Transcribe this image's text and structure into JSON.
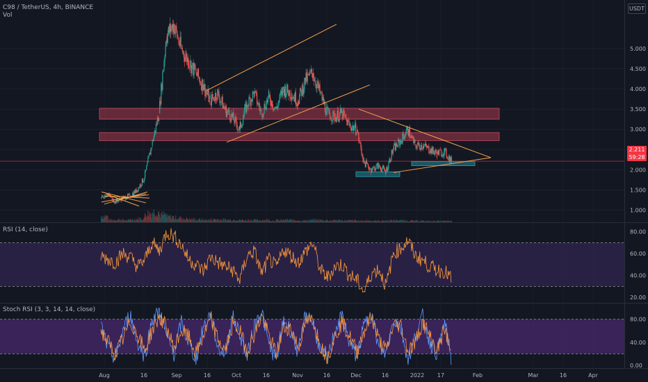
{
  "header": {
    "title": "C98 / TetherUS, 4h, BINANCE",
    "volume_label": "Vol",
    "currency": "USDT"
  },
  "price_badges": {
    "last_price": "2.211",
    "countdown": "59:28"
  },
  "colors": {
    "background": "#131722",
    "candle_up": "#26a69a",
    "candle_down": "#ef5350",
    "resistance_zone": "#a83a4f",
    "support_zone": "#1f6b78",
    "trendline": "#f7a44a",
    "rsi_line": "#ff9a3c",
    "rsi_band": "#3a2a5e",
    "stoch_k": "#5b9cff",
    "stoch_d": "#ff9a3c",
    "stoch_band": "#5a2e86"
  },
  "chart_data": [
    {
      "type": "candlestick",
      "title": "C98 / TetherUS, 4h, BINANCE",
      "ylim": [
        0.7,
        6.2
      ],
      "y_ticks": [
        "5.000",
        "4.500",
        "4.000",
        "3.500",
        "3.000",
        "2.500",
        "2.000",
        "1.500",
        "1.000"
      ],
      "x_ticks": [
        "Aug",
        "16",
        "Sep",
        "16",
        "Oct",
        "16",
        "Nov",
        "16",
        "Dec",
        "16",
        "2022",
        "17",
        "Feb",
        "Mar",
        "16",
        "Apr"
      ],
      "close_path": [
        [
          0,
          1.3
        ],
        [
          1,
          1.4
        ],
        [
          2,
          1.2
        ],
        [
          3,
          1.3
        ],
        [
          4,
          1.35
        ],
        [
          5,
          1.5
        ],
        [
          6,
          1.8
        ],
        [
          7,
          2.6
        ],
        [
          8,
          3.4
        ],
        [
          9,
          5.3
        ],
        [
          10,
          5.6
        ],
        [
          11,
          5.0
        ],
        [
          12,
          4.7
        ],
        [
          13,
          4.4
        ],
        [
          14,
          4.1
        ],
        [
          15,
          3.7
        ],
        [
          16,
          3.9
        ],
        [
          17,
          3.5
        ],
        [
          18,
          3.3
        ],
        [
          19,
          3.0
        ],
        [
          20,
          3.6
        ],
        [
          21,
          3.9
        ],
        [
          22,
          3.4
        ],
        [
          23,
          3.8
        ],
        [
          24,
          3.5
        ],
        [
          25,
          4.0
        ],
        [
          26,
          3.9
        ],
        [
          27,
          3.7
        ],
        [
          28,
          4.2
        ],
        [
          29,
          4.4
        ],
        [
          30,
          3.9
        ],
        [
          31,
          3.4
        ],
        [
          32,
          3.3
        ],
        [
          33,
          3.4
        ],
        [
          34,
          3.1
        ],
        [
          35,
          3.0
        ],
        [
          36,
          2.2
        ],
        [
          37,
          2.0
        ],
        [
          38,
          2.1
        ],
        [
          39,
          1.95
        ],
        [
          40,
          2.5
        ],
        [
          41,
          2.7
        ],
        [
          42,
          3.0
        ],
        [
          43,
          2.6
        ],
        [
          44,
          2.6
        ],
        [
          45,
          2.5
        ],
        [
          46,
          2.4
        ],
        [
          47,
          2.45
        ],
        [
          48,
          2.21
        ]
      ],
      "volume": [
        20,
        8,
        9,
        7,
        10,
        12,
        30,
        35,
        25,
        18,
        15,
        12,
        10,
        9,
        8,
        10,
        9,
        8,
        9,
        7,
        8,
        7,
        8,
        6,
        7,
        8,
        7,
        6,
        7,
        8,
        7,
        6,
        7,
        6,
        6,
        5,
        6,
        5,
        5,
        6,
        7,
        6,
        5,
        5,
        4,
        4,
        4,
        4,
        3
      ],
      "resistance_zones": [
        [
          3.25,
          3.52
        ],
        [
          2.72,
          2.92
        ]
      ],
      "support_zones": [
        [
          1.83,
          1.95
        ],
        [
          2.1,
          2.2
        ]
      ],
      "current_price": 2.211
    },
    {
      "type": "line",
      "name": "RSI (14, close)",
      "ylim": [
        15,
        88
      ],
      "y_ticks": [
        "80.00",
        "60.00",
        "40.00",
        "20.00"
      ],
      "band": [
        30,
        70
      ],
      "values": [
        58,
        55,
        52,
        60,
        57,
        48,
        54,
        70,
        62,
        80,
        76,
        68,
        55,
        50,
        44,
        57,
        52,
        48,
        45,
        36,
        58,
        62,
        42,
        55,
        47,
        64,
        58,
        52,
        62,
        70,
        45,
        38,
        48,
        50,
        40,
        36,
        25,
        42,
        46,
        30,
        60,
        65,
        72,
        58,
        54,
        48,
        45,
        44,
        36
      ]
    },
    {
      "type": "line",
      "name": "Stoch RSI (3, 3, 14, 14, close)",
      "ylim": [
        0,
        100
      ],
      "y_ticks": [
        "80.00",
        "40.00",
        "0.00"
      ],
      "band": [
        20,
        80
      ],
      "series": [
        {
          "values": [
            70,
            30,
            10,
            60,
            90,
            40,
            15,
            80,
            95,
            50,
            20,
            75,
            40,
            10,
            65,
            90,
            30,
            20,
            85,
            55,
            15,
            70,
            95,
            35,
            10,
            80,
            60,
            20,
            90,
            75,
            25,
            10,
            60,
            85,
            40,
            15,
            70,
            90,
            30,
            20,
            80,
            65,
            10,
            50,
            85,
            40,
            20,
            75,
            5
          ]
        },
        {
          "values": [
            60,
            40,
            20,
            45,
            75,
            55,
            25,
            60,
            85,
            65,
            30,
            60,
            50,
            20,
            50,
            80,
            45,
            25,
            70,
            60,
            25,
            55,
            85,
            50,
            20,
            65,
            65,
            30,
            75,
            80,
            35,
            15,
            50,
            75,
            50,
            25,
            60,
            85,
            45,
            25,
            70,
            70,
            25,
            40,
            75,
            50,
            25,
            65,
            15
          ]
        }
      ]
    }
  ]
}
